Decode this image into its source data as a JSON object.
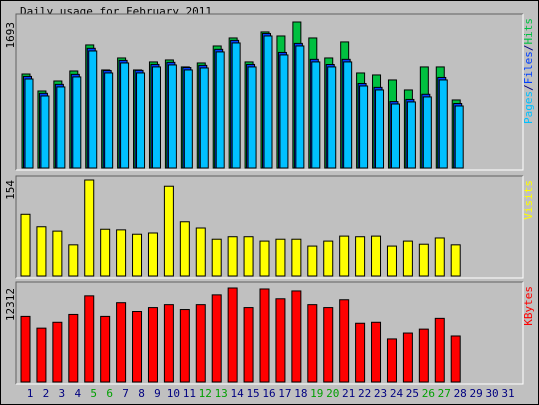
{
  "chart_data": {
    "type": "bar",
    "title": "Daily usage for February 2011",
    "categories": [
      "1",
      "2",
      "3",
      "4",
      "5",
      "6",
      "7",
      "8",
      "9",
      "10",
      "11",
      "12",
      "13",
      "14",
      "15",
      "16",
      "17",
      "18",
      "19",
      "20",
      "21",
      "22",
      "23",
      "24",
      "25",
      "26",
      "27",
      "28",
      "29",
      "30",
      "31"
    ],
    "category_colors": [
      "#000080",
      "#000080",
      "#000080",
      "#000080",
      "#00a000",
      "#00a000",
      "#000080",
      "#000080",
      "#000080",
      "#000080",
      "#000080",
      "#00a000",
      "#00a000",
      "#000080",
      "#000080",
      "#000080",
      "#000080",
      "#000080",
      "#00a000",
      "#00a000",
      "#000080",
      "#000080",
      "#000080",
      "#000080",
      "#000080",
      "#00a000",
      "#00a000",
      "#000080",
      "#000080",
      "#000080",
      "#000080"
    ],
    "panels": [
      {
        "ylim": [
          0,
          1693
        ],
        "yticks": [
          1693
        ],
        "label_separator": "/",
        "series": [
          {
            "name": "Hits",
            "color": "#00c040",
            "values": [
              1090,
              893,
              1009,
              1125,
              1427,
              1137,
              1276,
              1137,
              1230,
              1253,
              1172,
              1218,
              1415,
              1508,
              1230,
              1578,
              1531,
              1693,
              1508,
              1276,
              1462,
              1102,
              1079,
              1021,
              905,
              1172,
              1172,
              789,
              null,
              null,
              null
            ]
          },
          {
            "name": "Files",
            "color": "#0040ff",
            "values": [
              1062,
              866,
              970,
              1086,
              1388,
              1130,
              1248,
              1132,
              1201,
              1225,
              1165,
              1190,
              1376,
              1480,
              1201,
              1560,
              1340,
              1445,
              1260,
              1200,
              1260,
              980,
              935,
              770,
              795,
              855,
              1050,
              748,
              null,
              null,
              null
            ]
          },
          {
            "name": "Pages",
            "color": "#00c0ff",
            "values": [
              1032,
              835,
              940,
              1056,
              1357,
              1102,
              1218,
              1102,
              1172,
              1195,
              1137,
              1160,
              1346,
              1450,
              1172,
              1531,
              1311,
              1415,
              1230,
              1172,
              1230,
              951,
              905,
              742,
              766,
              824,
              1021,
              719,
              null,
              null,
              null
            ]
          }
        ]
      },
      {
        "ylim": [
          0,
          154
        ],
        "yticks": [
          154
        ],
        "series": [
          {
            "name": "Visits",
            "color": "#ffff00",
            "values": [
              99,
              79,
              72,
              50,
              154,
              75,
              74,
              67,
              69,
              144,
              87,
              77,
              59,
              63,
              63,
              56,
              59,
              59,
              48,
              56,
              64,
              63,
              64,
              48,
              56,
              51,
              61,
              50,
              null,
              null,
              null
            ]
          }
        ]
      },
      {
        "ylim": [
          0,
          12312
        ],
        "yticks": [
          12312
        ],
        "series": [
          {
            "name": "KBytes",
            "color": "#ff0000",
            "values": [
              8593,
              7054,
              7823,
              8849,
              11286,
              8593,
              10388,
              9234,
              9747,
              10132,
              9491,
              10132,
              11414,
              12312,
              9747,
              12184,
              10901,
              11927,
              10132,
              9747,
              10773,
              7695,
              7823,
              5643,
              6413,
              6926,
              8336,
              6028,
              null,
              null,
              null
            ]
          }
        ]
      }
    ]
  }
}
